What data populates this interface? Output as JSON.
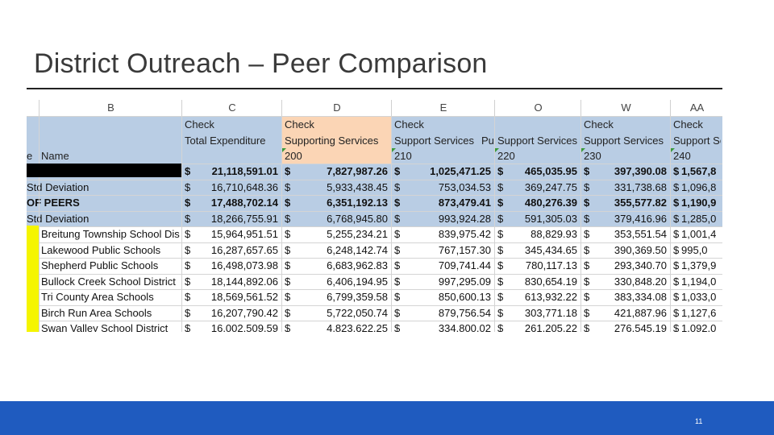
{
  "slide": {
    "title": "District Outreach – Peer Comparison",
    "page_number": "11"
  },
  "sheet": {
    "column_letters": [
      "B",
      "C",
      "D",
      "E",
      "O",
      "W",
      "AA"
    ],
    "header": {
      "name_label": "Name",
      "row_marker": "e",
      "c": [
        "Check",
        "Total Expenditure",
        ""
      ],
      "d": [
        "Check",
        "Supporting Services",
        "200"
      ],
      "e": [
        "Check",
        "Support Services",
        "210"
      ],
      "e_overflow": "Pu",
      "o": [
        "",
        "Support Services",
        "220"
      ],
      "w": [
        "Check",
        "Support Services",
        "230"
      ],
      "aa": [
        "Check",
        "Support Se",
        "240"
      ]
    },
    "rows": [
      {
        "name": "",
        "c": "21,118,591.01",
        "d": "7,827,987.26",
        "e": "1,025,471.25",
        "o": "465,035.95",
        "w": "397,390.08",
        "aa": "1,567,8",
        "bold": true,
        "redacted": true
      },
      {
        "name": "Std Deviation",
        "c": "16,710,648.36",
        "d": "5,933,438.45",
        "e": "753,034.53",
        "o": "369,247.75",
        "w": "331,738.68",
        "aa": "1,096,8",
        "bold": false
      },
      {
        "name": "OF PEERS",
        "c": "17,488,702.14",
        "d": "6,351,192.13",
        "e": "873,479.41",
        "o": "480,276.39",
        "w": "355,577.82",
        "aa": "1,190,9",
        "bold": true
      },
      {
        "name": "Std Deviation",
        "c": "18,266,755.91",
        "d": "6,768,945.80",
        "e": "993,924.28",
        "o": "591,305.03",
        "w": "379,416.96",
        "aa": "1,285,0",
        "bold": false
      },
      {
        "name": "Breitung Township School Dis",
        "c": "15,964,951.51",
        "d": "5,255,234.21",
        "e": "839,975.42",
        "o": "88,829.93",
        "w": "353,551.54",
        "aa": "1,001,4",
        "bold": false
      },
      {
        "name": "Lakewood Public Schools",
        "c": "16,287,657.65",
        "d": "6,248,142.74",
        "e": "767,157.30",
        "o": "345,434.65",
        "w": "390,369.50",
        "aa": "995,0",
        "bold": false
      },
      {
        "name": "Shepherd Public Schools",
        "c": "16,498,073.98",
        "d": "6,683,962.83",
        "e": "709,741.44",
        "o": "780,117.13",
        "w": "293,340.70",
        "aa": "1,379,9",
        "bold": false
      },
      {
        "name": "Bullock Creek School District",
        "c": "18,144,892.06",
        "d": "6,406,194.95",
        "e": "997,295.09",
        "o": "830,654.19",
        "w": "330,848.20",
        "aa": "1,194,0",
        "bold": false
      },
      {
        "name": "Tri County Area Schools",
        "c": "18,569,561.52",
        "d": "6,799,359.58",
        "e": "850,600.13",
        "o": "613,932.22",
        "w": "383,334.08",
        "aa": "1,033,0",
        "bold": false
      },
      {
        "name": "Birch Run Area Schools",
        "c": "16,207,790.42",
        "d": "5,722,050.74",
        "e": "879,756.54",
        "o": "303,771.18",
        "w": "421,887.96",
        "aa": "1,127,6",
        "bold": false
      },
      {
        "name": "Swan Valley School District",
        "c": "16,002,509.59",
        "d": "4,823,622.25",
        "e": "334,800.02",
        "o": "261,205.22",
        "w": "276,545.19",
        "aa": "1,092,0",
        "bold": false
      }
    ],
    "currency_symbol": "$",
    "colors": {
      "header_blue": "#b9cde4",
      "header_orange": "#fbd5b5",
      "highlight_yellow": "#f5f500",
      "footer_blue": "#1f5bbf"
    }
  }
}
